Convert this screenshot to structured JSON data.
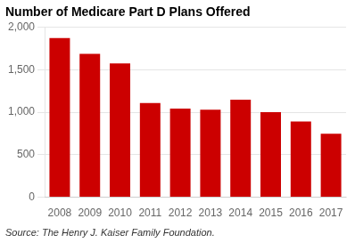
{
  "chart_data": {
    "type": "bar",
    "title": "Number of Medicare Part D Plans Offered",
    "categories": [
      "2008",
      "2009",
      "2010",
      "2011",
      "2012",
      "2013",
      "2014",
      "2015",
      "2016",
      "2017"
    ],
    "values": [
      1875,
      1689,
      1576,
      1108,
      1042,
      1031,
      1149,
      1001,
      891,
      746
    ],
    "color": "#cc0000",
    "ylim": [
      0,
      2000
    ],
    "yticks": [
      0,
      500,
      {
        "value": 1000,
        "label": "1,000"
      },
      {
        "value": 1500,
        "label": "1,500"
      },
      {
        "value": 2000,
        "label": "2,000"
      }
    ],
    "grid": true,
    "source": "Source: The Henry J. Kaiser Family Foundation."
  }
}
